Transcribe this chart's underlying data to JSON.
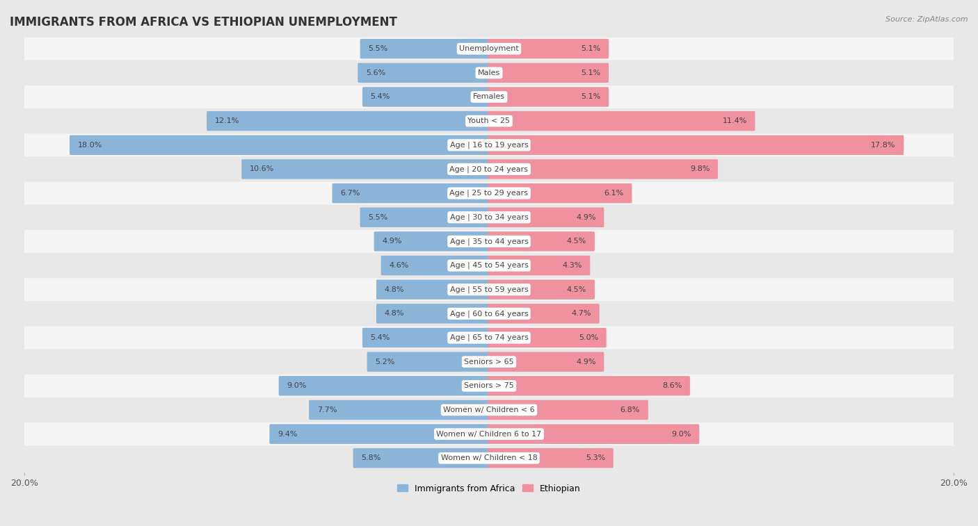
{
  "title": "IMMIGRANTS FROM AFRICA VS ETHIOPIAN UNEMPLOYMENT",
  "source": "Source: ZipAtlas.com",
  "categories": [
    "Unemployment",
    "Males",
    "Females",
    "Youth < 25",
    "Age | 16 to 19 years",
    "Age | 20 to 24 years",
    "Age | 25 to 29 years",
    "Age | 30 to 34 years",
    "Age | 35 to 44 years",
    "Age | 45 to 54 years",
    "Age | 55 to 59 years",
    "Age | 60 to 64 years",
    "Age | 65 to 74 years",
    "Seniors > 65",
    "Seniors > 75",
    "Women w/ Children < 6",
    "Women w/ Children 6 to 17",
    "Women w/ Children < 18"
  ],
  "africa_values": [
    5.5,
    5.6,
    5.4,
    12.1,
    18.0,
    10.6,
    6.7,
    5.5,
    4.9,
    4.6,
    4.8,
    4.8,
    5.4,
    5.2,
    9.0,
    7.7,
    9.4,
    5.8
  ],
  "ethiopian_values": [
    5.1,
    5.1,
    5.1,
    11.4,
    17.8,
    9.8,
    6.1,
    4.9,
    4.5,
    4.3,
    4.5,
    4.7,
    5.0,
    4.9,
    8.6,
    6.8,
    9.0,
    5.3
  ],
  "africa_color": "#8ab4d8",
  "ethiopian_color": "#f0919f",
  "background_color": "#e8e8e8",
  "row_white_color": "#f5f5f5",
  "row_gray_color": "#e8e8e8",
  "label_box_color": "#ffffff",
  "max_val": 20.0,
  "legend_africa": "Immigrants from Africa",
  "legend_ethiopian": "Ethiopian",
  "title_fontsize": 12,
  "source_fontsize": 8,
  "bar_label_fontsize": 8,
  "cat_label_fontsize": 8
}
